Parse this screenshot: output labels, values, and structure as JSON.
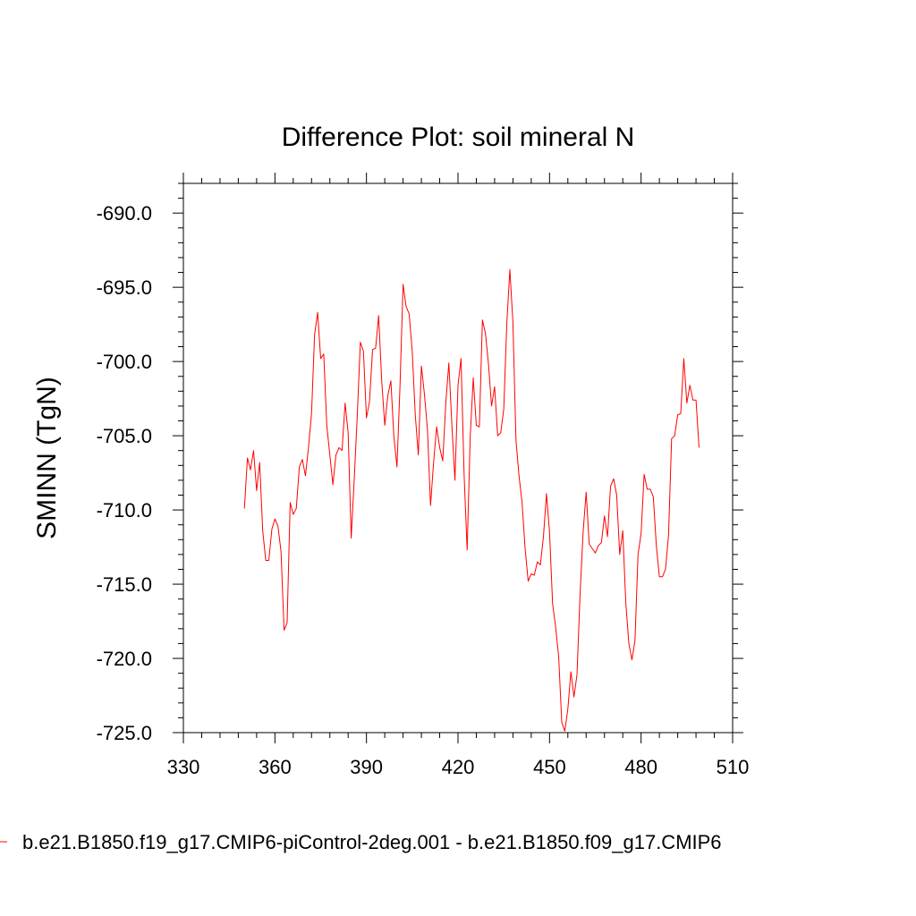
{
  "chart_data": {
    "type": "line",
    "title": "Difference Plot: soil mineral N",
    "xlabel": "",
    "ylabel": "SMINN  (TgN)",
    "xlim": [
      330,
      510
    ],
    "ylim": [
      -725,
      -688
    ],
    "xticks": [
      330,
      360,
      390,
      420,
      450,
      480,
      510
    ],
    "xtick_labels": [
      "330",
      "360",
      "390",
      "420",
      "450",
      "480",
      "510"
    ],
    "yticks": [
      -725,
      -720,
      -715,
      -710,
      -705,
      -700,
      -695,
      -690
    ],
    "ytick_labels": [
      "-725.0",
      "-720.0",
      "-715.0",
      "-710.0",
      "-705.0",
      "-700.0",
      "-695.0",
      "-690.0"
    ],
    "grid": false,
    "legend_position": "bottom",
    "series": [
      {
        "name": "b.e21.B1850.f19_g17.CMIP6-piControl-2deg.001 - b.e21.B1850.f09_g17.CMIP6",
        "color": "#ff0000",
        "x": [
          350,
          351,
          352,
          353,
          354,
          355,
          356,
          357,
          358,
          359,
          360,
          361,
          362,
          363,
          364,
          365,
          366,
          367,
          368,
          369,
          370,
          371,
          372,
          373,
          374,
          375,
          376,
          377,
          378,
          379,
          380,
          381,
          382,
          383,
          384,
          385,
          386,
          387,
          388,
          389,
          390,
          391,
          392,
          393,
          394,
          395,
          396,
          397,
          398,
          399,
          400,
          401,
          402,
          403,
          404,
          405,
          406,
          407,
          408,
          409,
          410,
          411,
          412,
          413,
          414,
          415,
          416,
          417,
          418,
          419,
          420,
          421,
          422,
          423,
          424,
          425,
          426,
          427,
          428,
          429,
          430,
          431,
          432,
          433,
          434,
          435,
          436,
          437,
          438,
          439,
          440,
          441,
          442,
          443,
          444,
          445,
          446,
          447,
          448,
          449,
          450,
          451,
          452,
          453,
          454,
          455,
          456,
          457,
          458,
          459,
          460,
          461,
          462,
          463,
          464,
          465,
          466,
          467,
          468,
          469,
          470,
          471,
          472,
          473,
          474,
          475,
          476,
          477,
          478,
          479,
          480,
          481,
          482,
          483,
          484,
          485,
          486,
          487,
          488,
          489,
          490,
          491,
          492,
          493,
          494,
          495,
          496,
          497,
          498,
          499
        ],
        "values": [
          -709.9,
          -706.5,
          -707.3,
          -706.0,
          -708.7,
          -706.8,
          -711.4,
          -713.4,
          -713.4,
          -711.3,
          -710.6,
          -711.1,
          -712.8,
          -718.1,
          -717.6,
          -709.5,
          -710.3,
          -709.9,
          -707.1,
          -706.6,
          -707.7,
          -705.8,
          -703.5,
          -698.2,
          -696.7,
          -699.8,
          -699.5,
          -704.3,
          -706.3,
          -708.3,
          -706.3,
          -705.8,
          -706.0,
          -702.8,
          -704.8,
          -711.9,
          -707.9,
          -703.6,
          -698.7,
          -699.3,
          -703.8,
          -702.7,
          -699.2,
          -699.1,
          -696.9,
          -701.3,
          -704.3,
          -702.3,
          -701.3,
          -705.1,
          -707.1,
          -701.6,
          -694.8,
          -696.3,
          -696.8,
          -699.3,
          -703.6,
          -706.3,
          -700.3,
          -702.2,
          -704.6,
          -709.7,
          -706.8,
          -704.4,
          -705.8,
          -706.7,
          -702.8,
          -700.1,
          -704.3,
          -708.0,
          -701.6,
          -699.8,
          -707.6,
          -712.7,
          -705.1,
          -701.1,
          -704.3,
          -704.4,
          -697.2,
          -698.1,
          -700.2,
          -703.0,
          -701.7,
          -705.0,
          -704.8,
          -703.2,
          -697.4,
          -693.8,
          -697.4,
          -705.3,
          -707.7,
          -709.5,
          -712.6,
          -714.8,
          -714.3,
          -714.4,
          -713.5,
          -713.7,
          -711.8,
          -708.9,
          -711.5,
          -716.3,
          -717.9,
          -719.9,
          -724.3,
          -724.9,
          -723.4,
          -720.9,
          -722.6,
          -721.1,
          -715.7,
          -711.5,
          -708.8,
          -712.3,
          -712.6,
          -712.9,
          -712.4,
          -712.2,
          -710.4,
          -711.8,
          -708.4,
          -707.9,
          -709.0,
          -713.0,
          -711.4,
          -716.3,
          -719.0,
          -720.1,
          -718.8,
          -713.0,
          -711.6,
          -707.6,
          -708.6,
          -708.6,
          -709.1,
          -712.4,
          -714.5,
          -714.5,
          -714.0,
          -711.7,
          -705.2,
          -705.0,
          -703.6,
          -703.5,
          -699.8,
          -702.8,
          -701.6,
          -702.6,
          -702.6,
          -705.8
        ]
      }
    ]
  }
}
